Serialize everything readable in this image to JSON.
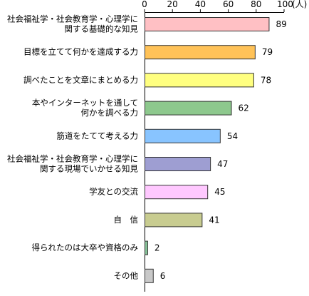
{
  "chart_data": {
    "type": "bar",
    "orientation": "horizontal",
    "unit": "(人)",
    "xlim": [
      0,
      100
    ],
    "ticks": [
      "0",
      "20",
      "40",
      "60",
      "80",
      "100"
    ],
    "grid": false,
    "categories": [
      [
        "社会福祉学・社会教育学・心理学に",
        "関する基礎的な知見"
      ],
      [
        "目標を立てて何かを達成する力"
      ],
      [
        "調べたことを文章にまとめる力"
      ],
      [
        "本やインターネットを通して",
        "何かを調べる力"
      ],
      [
        "筋道をたてて考える力"
      ],
      [
        "社会福祉学・社会教育学・心理学に",
        "関する現場でいかせる知見"
      ],
      [
        "学友との交流"
      ],
      [
        "自　信"
      ],
      [
        "得られたのは大卒や資格のみ"
      ],
      [
        "その他"
      ]
    ],
    "values": [
      89,
      79,
      78,
      62,
      54,
      47,
      45,
      41,
      2,
      6
    ],
    "colors": [
      "#FFC0C4",
      "#FFC258",
      "#FFFF80",
      "#8DC88D",
      "#88C4FF",
      "#9E9ED2",
      "#FFC8FF",
      "#C8CC90",
      "#88C49A",
      "#C8C8C8"
    ]
  }
}
